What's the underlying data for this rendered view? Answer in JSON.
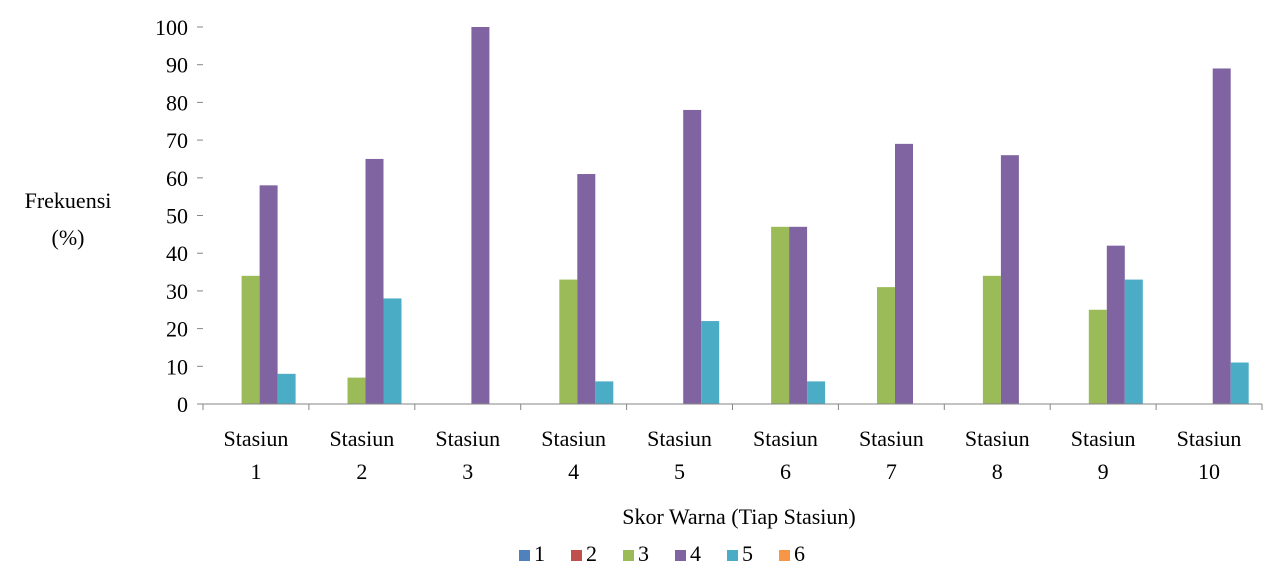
{
  "chart_data": {
    "type": "bar",
    "title": "",
    "xlabel": "Skor Warna (Tiap Stasiun)",
    "ylabel_lines": [
      "Frekuensi",
      "(%)"
    ],
    "ylim": [
      0,
      100
    ],
    "yticks": [
      0,
      10,
      20,
      30,
      40,
      50,
      60,
      70,
      80,
      90,
      100
    ],
    "grid": false,
    "legend_position": "bottom",
    "categories": [
      [
        "Stasiun",
        "1"
      ],
      [
        "Stasiun",
        "2"
      ],
      [
        "Stasiun",
        "3"
      ],
      [
        "Stasiun",
        "4"
      ],
      [
        "Stasiun",
        "5"
      ],
      [
        "Stasiun",
        "6"
      ],
      [
        "Stasiun",
        "7"
      ],
      [
        "Stasiun",
        "8"
      ],
      [
        "Stasiun",
        "9"
      ],
      [
        "Stasiun",
        "10"
      ]
    ],
    "series": [
      {
        "name": "1",
        "color": "#4F81BD",
        "values": [
          0,
          0,
          0,
          0,
          0,
          0,
          0,
          0,
          0,
          0
        ]
      },
      {
        "name": "2",
        "color": "#C0504D",
        "values": [
          0,
          0,
          0,
          0,
          0,
          0,
          0,
          0,
          0,
          0
        ]
      },
      {
        "name": "3",
        "color": "#9BBB59",
        "values": [
          34,
          7,
          0,
          33,
          0,
          47,
          31,
          34,
          25,
          0
        ]
      },
      {
        "name": "4",
        "color": "#8064A2",
        "values": [
          58,
          65,
          100,
          61,
          78,
          47,
          69,
          66,
          42,
          89
        ]
      },
      {
        "name": "5",
        "color": "#4BACC6",
        "values": [
          8,
          28,
          0,
          6,
          22,
          6,
          0,
          0,
          33,
          11
        ]
      },
      {
        "name": "6",
        "color": "#F79646",
        "values": [
          0,
          0,
          0,
          0,
          0,
          0,
          0,
          0,
          0,
          0
        ]
      }
    ]
  }
}
